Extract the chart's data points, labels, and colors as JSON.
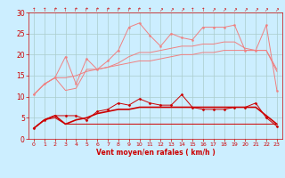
{
  "x": [
    0,
    1,
    2,
    3,
    4,
    5,
    6,
    7,
    8,
    9,
    10,
    11,
    12,
    13,
    14,
    15,
    16,
    17,
    18,
    19,
    20,
    21,
    22,
    23
  ],
  "line1_light_marker": [
    10.5,
    13.0,
    14.5,
    19.5,
    13.0,
    19.0,
    16.5,
    18.5,
    21.0,
    26.5,
    27.5,
    24.5,
    22.0,
    25.0,
    24.0,
    23.5,
    26.5,
    26.5,
    26.5,
    27.0,
    21.0,
    21.0,
    27.0,
    11.5
  ],
  "line2_light": [
    10.5,
    13.0,
    14.5,
    11.5,
    12.0,
    16.5,
    16.5,
    17.0,
    18.0,
    19.5,
    20.5,
    20.5,
    21.0,
    21.5,
    22.0,
    22.0,
    22.5,
    22.5,
    23.0,
    23.0,
    21.5,
    21.0,
    21.0,
    16.0
  ],
  "line3_light_plain": [
    10.5,
    13.0,
    14.5,
    14.5,
    15.0,
    16.0,
    16.5,
    17.0,
    17.5,
    18.0,
    18.5,
    18.5,
    19.0,
    19.5,
    20.0,
    20.0,
    20.5,
    20.5,
    21.0,
    21.0,
    21.0,
    21.0,
    21.0,
    16.5
  ],
  "line4_dark_marker": [
    2.5,
    4.5,
    5.5,
    5.5,
    5.5,
    4.5,
    6.5,
    7.0,
    8.5,
    8.0,
    9.5,
    8.5,
    8.0,
    8.0,
    10.5,
    7.5,
    7.0,
    7.0,
    7.0,
    7.5,
    7.5,
    8.5,
    5.0,
    3.0
  ],
  "line5_dark": [
    2.5,
    4.5,
    5.5,
    3.5,
    4.5,
    5.0,
    6.0,
    6.5,
    7.0,
    7.0,
    7.5,
    7.5,
    7.5,
    7.5,
    7.5,
    7.5,
    7.5,
    7.5,
    7.5,
    7.5,
    7.5,
    7.5,
    5.5,
    3.5
  ],
  "line6_dark_plain": [
    2.5,
    4.5,
    5.0,
    3.5,
    3.5,
    3.5,
    3.5,
    3.5,
    3.5,
    3.5,
    3.5,
    3.5,
    3.5,
    3.5,
    3.5,
    3.5,
    3.5,
    3.5,
    3.5,
    3.5,
    3.5,
    3.5,
    3.5,
    3.5
  ],
  "color_light": "#f08080",
  "color_dark": "#cc0000",
  "bg_color": "#cceeff",
  "grid_color": "#aacccc",
  "xlabel": "Vent moyen/en rafales ( km/h )",
  "yticks": [
    0,
    5,
    10,
    15,
    20,
    25,
    30
  ],
  "ylim": [
    0,
    30
  ],
  "xlim": [
    -0.5,
    23.5
  ]
}
